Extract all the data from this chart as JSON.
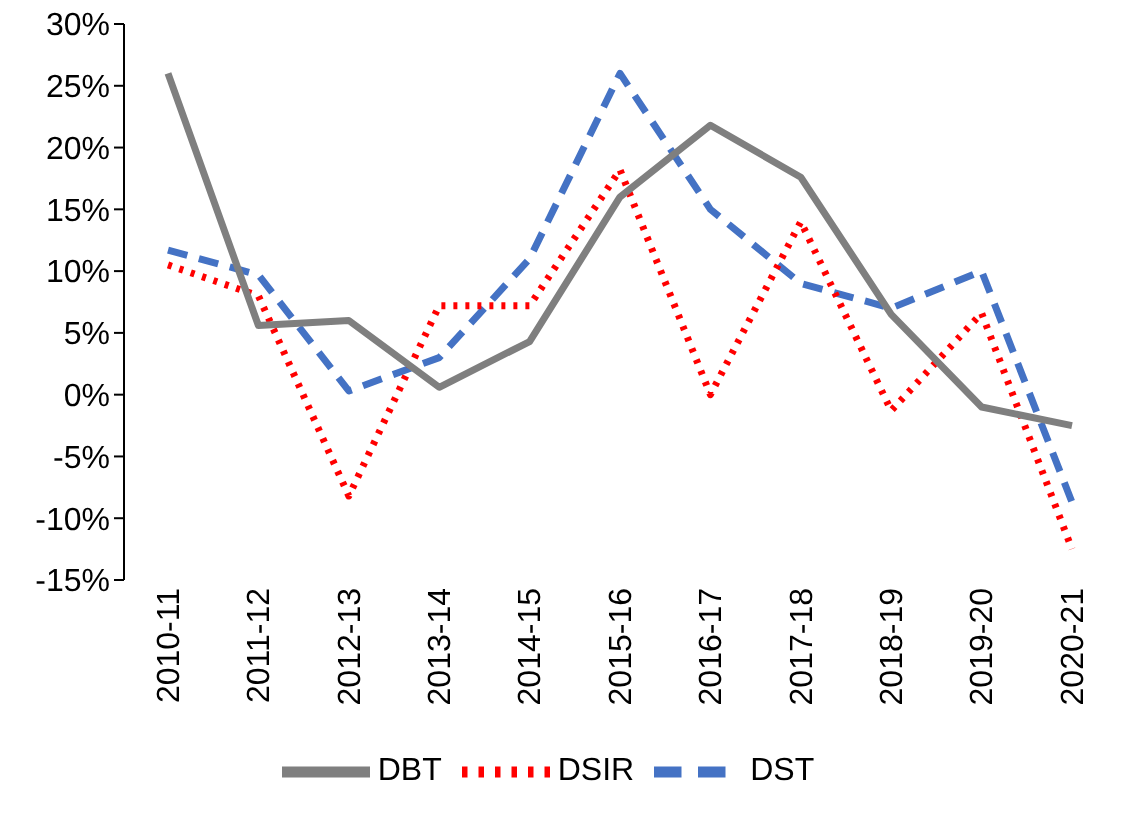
{
  "chart_data": {
    "type": "line",
    "categories": [
      "2010-11",
      "2011-12",
      "2012-13",
      "2013-14",
      "2014-15",
      "2015-16",
      "2016-17",
      "2017-18",
      "2018-19",
      "2019-20",
      "2020-21"
    ],
    "series": [
      {
        "name": "DST",
        "color": "#4472c4",
        "line_style": "dashed",
        "values": [
          11.7,
          9.7,
          0.3,
          3,
          11,
          26,
          15,
          9,
          7,
          10,
          -8.7
        ]
      },
      {
        "name": "DSIR",
        "color": "#ff0000",
        "line_style": "dotted",
        "values": [
          10.5,
          8,
          -8.2,
          7.2,
          7.2,
          18.2,
          0,
          14,
          -1.3,
          6.6,
          -12.5
        ]
      },
      {
        "name": "DBT",
        "color": "#7f7f7f",
        "line_style": "solid",
        "values": [
          26,
          5.6,
          6,
          0.6,
          4.3,
          16,
          21.8,
          17.6,
          6.5,
          -1,
          -2.5
        ]
      }
    ],
    "ylim": [
      -15,
      30
    ],
    "yticks": [
      {
        "value": -15,
        "label": "-15%"
      },
      {
        "value": -10,
        "label": "-10%"
      },
      {
        "value": -5,
        "label": "-5%"
      },
      {
        "value": 0,
        "label": "0%"
      },
      {
        "value": 5,
        "label": "5%"
      },
      {
        "value": 10,
        "label": "10%"
      },
      {
        "value": 15,
        "label": "15%"
      },
      {
        "value": 20,
        "label": "20%"
      },
      {
        "value": 25,
        "label": "25%"
      },
      {
        "value": 30,
        "label": "30%"
      }
    ],
    "grid": false,
    "legend": "bottom",
    "marker": "none"
  }
}
